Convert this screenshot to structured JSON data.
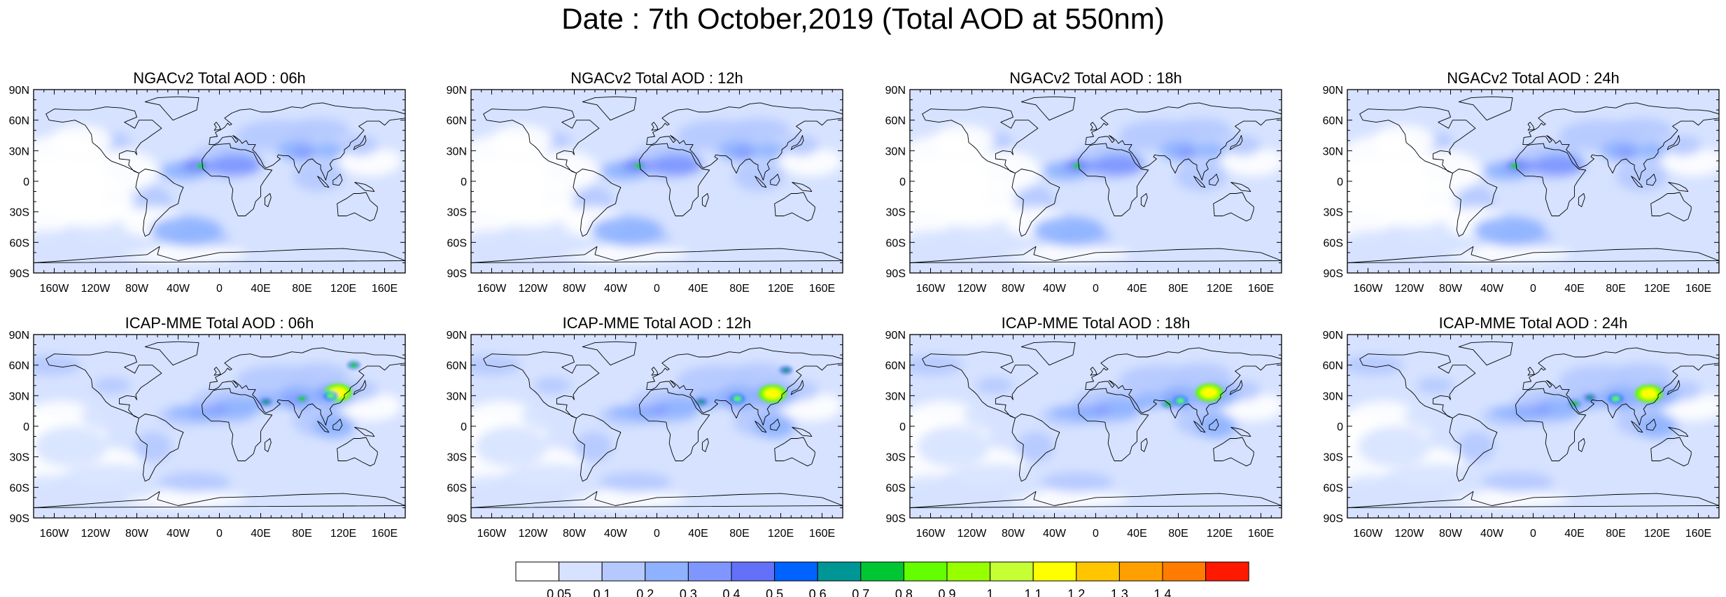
{
  "title": "Date : 7th October,2019 (Total AOD at 550nm)",
  "panels": [
    {
      "title": "NGACv2 Total AOD : 06h",
      "model": "NGACv2",
      "hour": "06h",
      "hotspots": [
        {
          "lon": -18,
          "lat": 15,
          "v": 0.7
        }
      ]
    },
    {
      "title": "NGACv2 Total AOD : 12h",
      "model": "NGACv2",
      "hour": "12h",
      "hotspots": [
        {
          "lon": -18,
          "lat": 15,
          "v": 0.7
        }
      ]
    },
    {
      "title": "NGACv2 Total AOD : 18h",
      "model": "NGACv2",
      "hour": "18h",
      "hotspots": [
        {
          "lon": -18,
          "lat": 15,
          "v": 0.7
        }
      ]
    },
    {
      "title": "NGACv2 Total AOD : 24h",
      "model": "NGACv2",
      "hour": "24h",
      "hotspots": [
        {
          "lon": -18,
          "lat": 15,
          "v": 0.7
        }
      ]
    },
    {
      "title": "ICAP-MME Total AOD : 06h",
      "model": "ICAP-MME",
      "hour": "06h",
      "hotspots": [
        {
          "lon": 115,
          "lat": 33,
          "v": 1.1
        },
        {
          "lon": 108,
          "lat": 30,
          "v": 0.8
        },
        {
          "lon": 80,
          "lat": 27,
          "v": 0.7
        },
        {
          "lon": 45,
          "lat": 24,
          "v": 0.6
        },
        {
          "lon": 130,
          "lat": 60,
          "v": 0.7
        }
      ]
    },
    {
      "title": "ICAP-MME Total AOD : 12h",
      "model": "ICAP-MME",
      "hour": "12h",
      "hotspots": [
        {
          "lon": 112,
          "lat": 32,
          "v": 1.1
        },
        {
          "lon": 78,
          "lat": 27,
          "v": 0.8
        },
        {
          "lon": 43,
          "lat": 24,
          "v": 0.6
        },
        {
          "lon": 125,
          "lat": 55,
          "v": 0.6
        }
      ]
    },
    {
      "title": "ICAP-MME Total AOD : 18h",
      "model": "ICAP-MME",
      "hour": "18h",
      "hotspots": [
        {
          "lon": 110,
          "lat": 33,
          "v": 1.1
        },
        {
          "lon": 82,
          "lat": 25,
          "v": 0.8
        },
        {
          "lon": 70,
          "lat": 22,
          "v": 0.7
        }
      ]
    },
    {
      "title": "ICAP-MME Total AOD : 24h",
      "model": "ICAP-MME",
      "hour": "24h",
      "hotspots": [
        {
          "lon": 112,
          "lat": 32,
          "v": 1.1
        },
        {
          "lon": 80,
          "lat": 27,
          "v": 0.8
        },
        {
          "lon": 40,
          "lat": 22,
          "v": 0.7
        },
        {
          "lon": 55,
          "lat": 28,
          "v": 0.6
        }
      ]
    }
  ],
  "axes": {
    "x_ticks": [
      "160W",
      "120W",
      "80W",
      "40W",
      "0",
      "40E",
      "80E",
      "120E",
      "160E"
    ],
    "x_tick_values": [
      -160,
      -120,
      -80,
      -40,
      0,
      40,
      80,
      120,
      160
    ],
    "y_ticks": [
      "90N",
      "60N",
      "30N",
      "0",
      "30S",
      "60S",
      "90S"
    ],
    "y_tick_values": [
      90,
      60,
      30,
      0,
      -30,
      -60,
      -90
    ]
  },
  "colorbar": {
    "labels": [
      "0.05",
      "0.1",
      "0.2",
      "0.3",
      "0.4",
      "0.5",
      "0.6",
      "0.7",
      "0.8",
      "0.9",
      "1",
      "1.1",
      "1.2",
      "1.3",
      "1.4"
    ],
    "levels": [
      0.05,
      0.1,
      0.2,
      0.3,
      0.4,
      0.5,
      0.6,
      0.7,
      0.8,
      0.9,
      1,
      1.1,
      1.2,
      1.3,
      1.4
    ],
    "colors": [
      "#ffffff",
      "#d6e2ff",
      "#b5c9ff",
      "#8eb2ff",
      "#7f96ff",
      "#6370f8",
      "#0063ff",
      "#009696",
      "#00c633",
      "#63ff00",
      "#96ff00",
      "#c6ff33",
      "#ffff00",
      "#ffc600",
      "#ffa000",
      "#ff7c00",
      "#ff1900"
    ]
  }
}
